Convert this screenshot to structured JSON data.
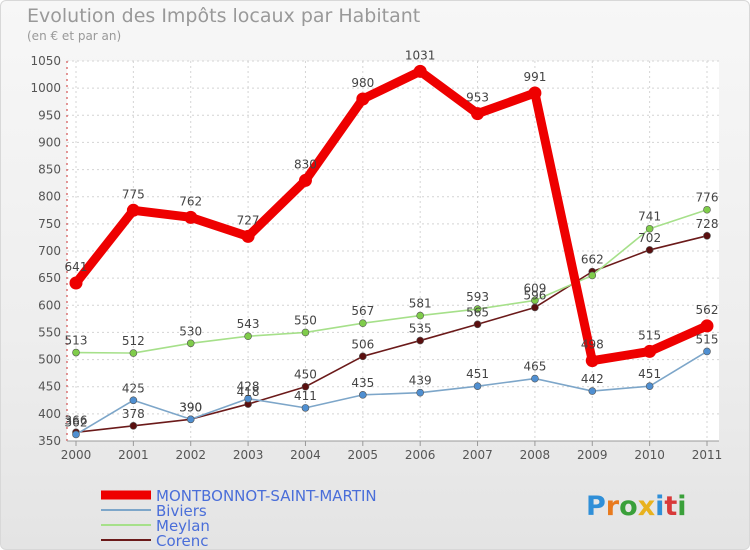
{
  "chart_data": {
    "type": "line",
    "title": "Evolution des Impôts locaux par Habitant",
    "subtitle": "(en € et par an)",
    "categories": [
      "2000",
      "2001",
      "2002",
      "2003",
      "2004",
      "2005",
      "2006",
      "2007",
      "2008",
      "2009",
      "2010",
      "2011"
    ],
    "ylim": [
      350,
      1050
    ],
    "yticks": [
      350,
      400,
      450,
      500,
      550,
      600,
      650,
      700,
      750,
      800,
      850,
      900,
      950,
      1000,
      1050
    ],
    "series": [
      {
        "name": "Corenc",
        "color": "#6b1a1a",
        "marker": "#5a0f0f",
        "values": [
          366,
          378,
          390,
          418,
          450,
          506,
          535,
          565,
          596,
          662,
          702,
          728
        ],
        "labels": [
          "366",
          "378",
          "390",
          "418",
          "450",
          "506",
          "535",
          "565",
          "596",
          "662",
          "702",
          "728"
        ]
      },
      {
        "name": "Meylan",
        "color": "#a6e08a",
        "marker": "#7fcc4a",
        "values": [
          513,
          512,
          530,
          543,
          550,
          567,
          581,
          593,
          609,
          655,
          741,
          776
        ],
        "labels": [
          "513",
          "512",
          "530",
          "543",
          "550",
          "567",
          "581",
          "593",
          "609",
          "",
          "741",
          "776"
        ]
      },
      {
        "name": "Biviers",
        "color": "#7da6c9",
        "marker": "#4f8fd1",
        "values": [
          362,
          425,
          390,
          428,
          411,
          435,
          439,
          451,
          465,
          442,
          451,
          515
        ],
        "labels": [
          "362",
          "425",
          "390",
          "428",
          "411",
          "435",
          "439",
          "451",
          "465",
          "442",
          "451",
          "515"
        ]
      },
      {
        "name": "MONTBONNOT-SAINT-MARTIN",
        "color": "#ee0000",
        "marker": "#ee0000",
        "values": [
          641,
          775,
          762,
          727,
          830,
          980,
          1031,
          953,
          991,
          498,
          515,
          562
        ],
        "labels": [
          "641",
          "775",
          "762",
          "727",
          "830",
          "980",
          "1031",
          "953",
          "991",
          "498",
          "515",
          "562"
        ]
      }
    ],
    "legend": [
      "MONTBONNOT-SAINT-MARTIN",
      "Biviers",
      "Meylan",
      "Corenc"
    ]
  },
  "logo": {
    "letters": [
      "P",
      "r",
      "o",
      "x",
      "i",
      "t",
      "i"
    ],
    "colors": [
      "#2f8fd8",
      "#e87a1e",
      "#3aa03a",
      "#e8b21e",
      "#2f8fd8",
      "#d83a3a",
      "#3aa03a"
    ]
  }
}
